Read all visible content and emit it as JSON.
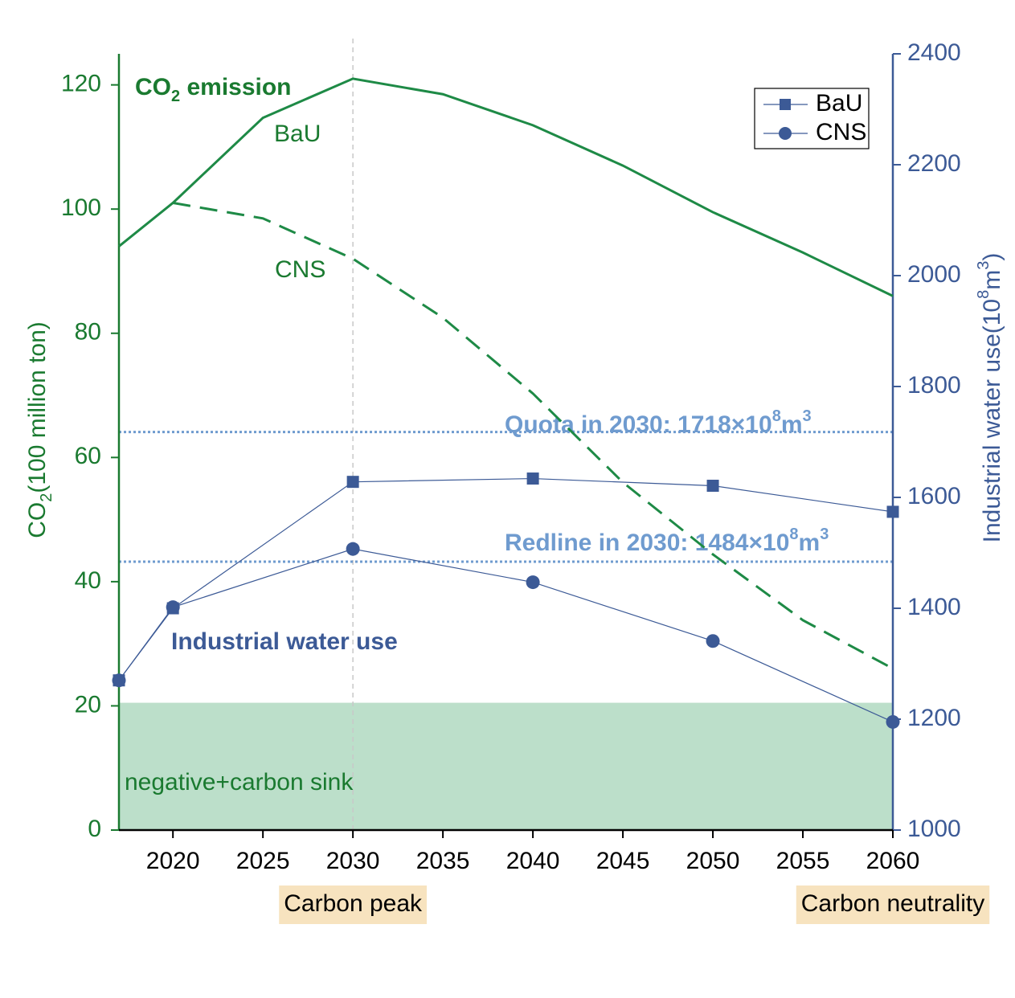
{
  "chart_data": {
    "type": "line",
    "xlim": [
      2017,
      2060
    ],
    "xticks": [
      2020,
      2025,
      2030,
      2035,
      2040,
      2045,
      2050,
      2055,
      2060
    ],
    "ylim": [
      0,
      125
    ],
    "yticks": [
      0,
      20,
      40,
      60,
      80,
      100,
      120
    ],
    "y2lim": [
      1000,
      2400
    ],
    "y2ticks": [
      1000,
      1200,
      1400,
      1600,
      1800,
      2000,
      2200,
      2400
    ],
    "ylabel": [
      {
        "t": "CO"
      },
      {
        "t": "2",
        "sub": true
      },
      {
        "t": "(100 million ton)"
      }
    ],
    "y2label": [
      {
        "t": "Industrial water use(10"
      },
      {
        "t": "8",
        "sup": true
      },
      {
        "t": "m"
      },
      {
        "t": "3",
        "sup": true
      },
      {
        "t": ")"
      }
    ],
    "legend": "upper right",
    "series": [
      {
        "name": "BaU",
        "color": "#1e8a46",
        "dash": false,
        "legend": false,
        "x": [
          2017,
          2020,
          2025,
          2030,
          2035,
          2040,
          2045,
          2050,
          2055,
          2060
        ],
        "values": [
          94,
          101,
          114.7,
          121,
          118.5,
          113.5,
          107,
          99.5,
          93,
          86
        ]
      },
      {
        "name": "CNS",
        "color": "#1e8a46",
        "dash": true,
        "legend": false,
        "x": [
          2020,
          2025,
          2030,
          2035,
          2040,
          2045,
          2050,
          2055,
          2060
        ],
        "values": [
          101,
          98.5,
          92,
          82.5,
          70.3,
          56,
          44.4,
          33.8,
          26
        ]
      },
      {
        "name": "BaU",
        "color": "#3c5a96",
        "axis": "y2",
        "marker": "square",
        "legend": true,
        "x": [
          2017,
          2020,
          2030,
          2040,
          2050,
          2060
        ],
        "values": [
          1270,
          1400,
          1628,
          1634,
          1621,
          1574
        ]
      },
      {
        "name": "CNS",
        "color": "#3c5a96",
        "axis": "y2",
        "marker": "circle",
        "legend": true,
        "x": [
          2017,
          2020,
          2030,
          2040,
          2050,
          2060
        ],
        "values": [
          1270,
          1402,
          1507,
          1447,
          1341,
          1195
        ]
      }
    ],
    "reference_lines": [
      {
        "axis": "y2",
        "value": 1718,
        "color": "#6f9bcf",
        "label": [
          {
            "t": "Quota in 2030: 1718×10"
          },
          {
            "t": "8",
            "sup": true
          },
          {
            "t": "m"
          },
          {
            "t": "3",
            "sup": true
          }
        ]
      },
      {
        "axis": "y2",
        "value": 1484,
        "color": "#6f9bcf",
        "label": [
          {
            "t": "Redline in 2030: 1484×10"
          },
          {
            "t": "8",
            "sup": true
          },
          {
            "t": "m"
          },
          {
            "t": "3",
            "sup": true
          }
        ]
      }
    ],
    "vline": 2030,
    "band": {
      "ylim": [
        0,
        20.5
      ],
      "color": "#bcdfca",
      "label": "negative+carbon sink"
    },
    "annotations": [
      {
        "color": "#1a7a30",
        "text": [
          {
            "t": "CO"
          },
          {
            "t": "2",
            "sub": true
          },
          {
            "t": " emission"
          }
        ]
      },
      {
        "color": "#3c5a96",
        "text": [
          {
            "t": "Industrial water use"
          }
        ]
      }
    ],
    "milestones": [
      {
        "x": 2030,
        "label": "Carbon peak"
      },
      {
        "x": 2060,
        "label": "Carbon neutrality"
      }
    ]
  }
}
